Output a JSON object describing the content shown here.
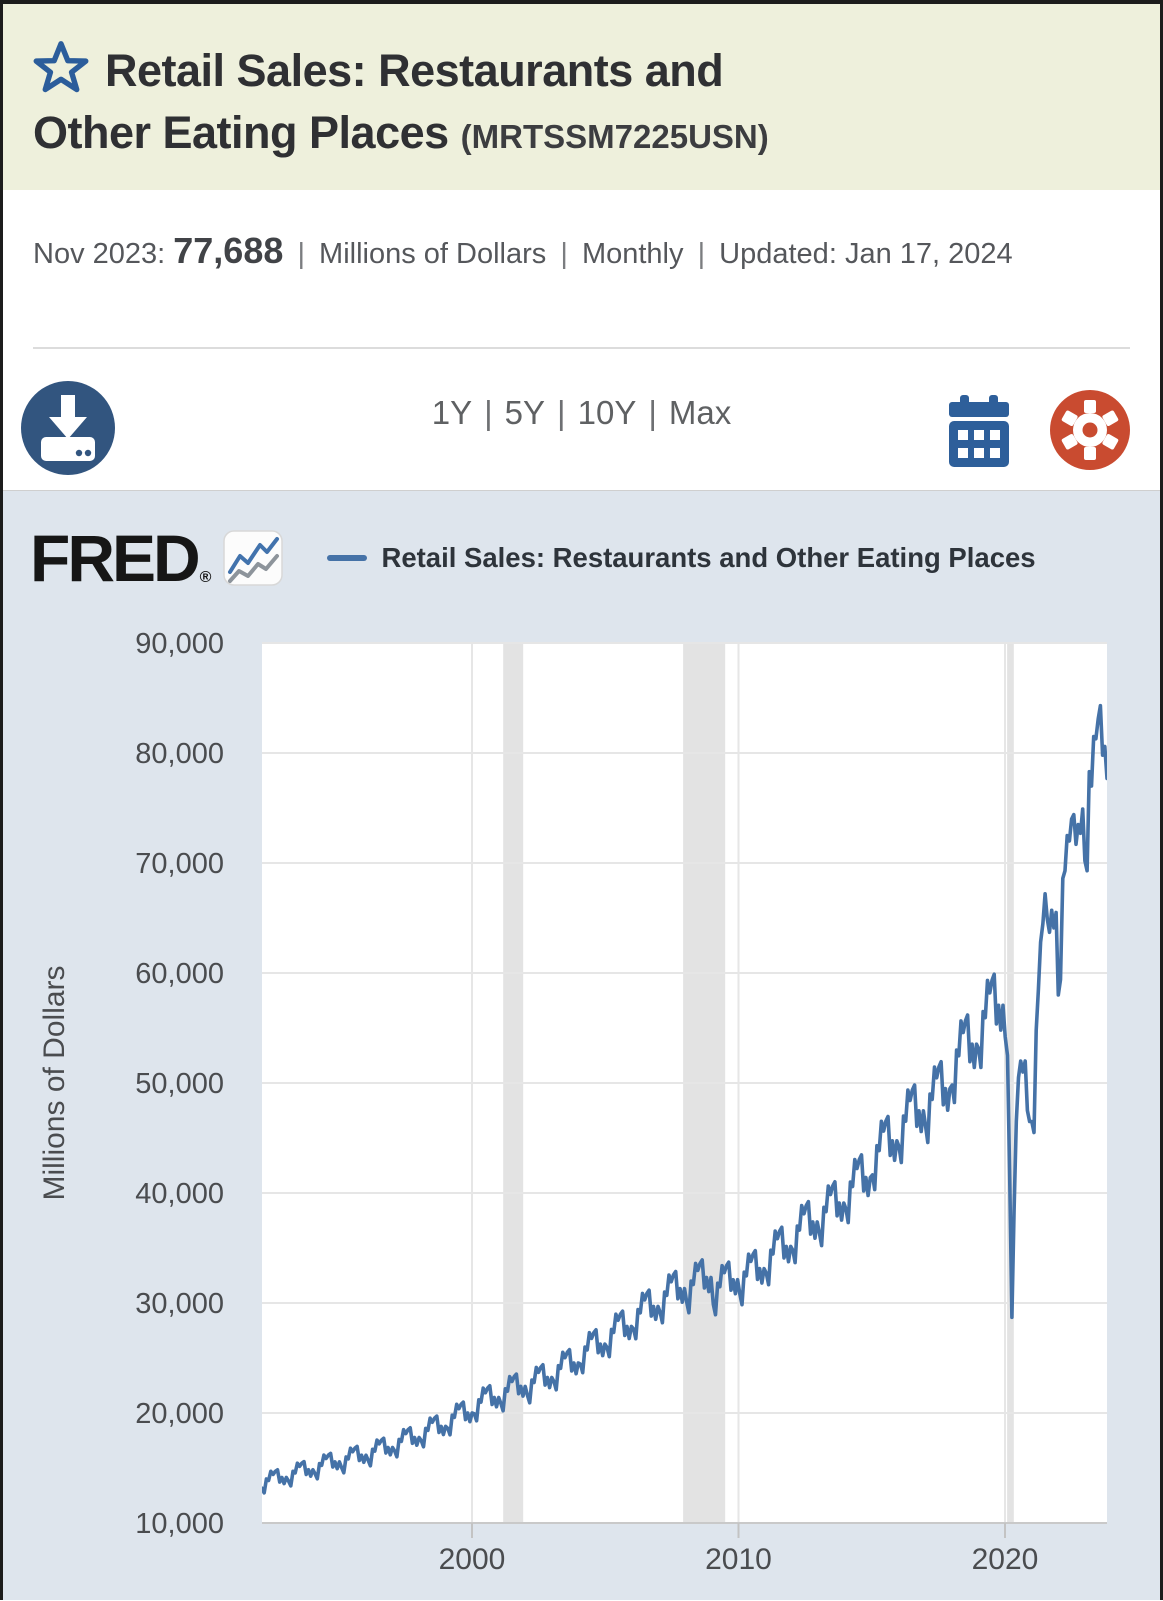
{
  "header": {
    "title_line1": "Retail Sales: Restaurants and",
    "title_line2": "Other Eating Places",
    "series_id": "(MRTSSM7225USN)"
  },
  "meta": {
    "date_label": "Nov 2023:",
    "value": "77,688",
    "separator": "|",
    "units": "Millions of Dollars",
    "frequency": "Monthly",
    "updated_label": "Updated:",
    "updated_date": "Jan 17, 2024"
  },
  "toolbar": {
    "ranges": [
      "1Y",
      "5Y",
      "10Y",
      "Max"
    ],
    "range_separator": "|",
    "download_icon_color": "#32557f",
    "calendar_icon_color": "#2e5f9a",
    "gear_icon_color": "#c94b30",
    "star_icon_color": "#2b5d9b"
  },
  "chart": {
    "logo_text": "FRED",
    "logo_reg": "®",
    "legend_label": "Retail Sales: Restaurants and Other Eating Places",
    "colors": {
      "section_bg": "#dee5ed",
      "plot_bg": "#ffffff",
      "grid": "#e6e6e6",
      "recession_band": "#e3e3e3",
      "axis_line": "#c9c9c9",
      "tick": "#c3c3c3",
      "axis_text": "#4a4c4f",
      "line": "#4572a7",
      "badge_line_blue": "#4273ad",
      "badge_line_gray": "#8d949b"
    },
    "chart_data": {
      "type": "line",
      "title": "Retail Sales: Restaurants and Other Eating Places",
      "ylabel": "Millions of Dollars",
      "ylim": [
        10000,
        90000
      ],
      "yticks": [
        10000,
        20000,
        30000,
        40000,
        50000,
        60000,
        70000,
        80000,
        90000
      ],
      "xticks": [
        2000,
        2010,
        2020
      ],
      "frequency": "monthly",
      "x_start": "1992-01",
      "x_end": "2023-11",
      "grid": true,
      "legend_position": "top",
      "recession_bands": [
        [
          2001.17,
          2001.92
        ],
        [
          2007.92,
          2009.5
        ],
        [
          2020.08,
          2020.33
        ]
      ],
      "values": [
        13160,
        12740,
        14000,
        13860,
        14700,
        14420,
        14700,
        14840,
        13720,
        14140,
        13580,
        14140,
        13818,
        13377,
        14700,
        14553,
        15435,
        15141,
        15435,
        15582,
        14406,
        14847,
        14259,
        14847,
        14476,
        14014,
        15400,
        15246,
        16170,
        15862,
        16170,
        16324,
        15092,
        15554,
        14938,
        15554,
        15040,
        14560,
        16000,
        15840,
        16800,
        16480,
        16800,
        16960,
        15680,
        16160,
        15520,
        16160,
        15698,
        15197,
        16700,
        16533,
        17535,
        17201,
        17535,
        17702,
        16366,
        16867,
        16199,
        16867,
        16544,
        16016,
        17600,
        17424,
        18480,
        18128,
        18480,
        18656,
        17248,
        17776,
        17072,
        17776,
        17484,
        16926,
        18600,
        18414,
        19530,
        19158,
        19530,
        19716,
        18228,
        18786,
        18042,
        18786,
        18612,
        18018,
        19800,
        19602,
        20790,
        20394,
        20790,
        20988,
        19404,
        19998,
        19206,
        19998,
        19928,
        19292,
        21200,
        20988,
        22260,
        21836,
        22260,
        22472,
        20776,
        21412,
        20564,
        21412,
        20868,
        20202,
        22200,
        21978,
        23310,
        22866,
        23310,
        23532,
        21756,
        22422,
        21534,
        22422,
        21620,
        20930,
        23000,
        22770,
        24150,
        23690,
        24150,
        24380,
        22540,
        23230,
        22310,
        23230,
        22842,
        22113,
        24300,
        24057,
        25515,
        25029,
        25515,
        25758,
        23814,
        24543,
        23571,
        24543,
        24440,
        23660,
        26000,
        25740,
        27300,
        26780,
        27300,
        27560,
        25480,
        26260,
        25220,
        26260,
        25944,
        25116,
        27600,
        27324,
        28980,
        28428,
        28980,
        29256,
        27048,
        27876,
        26772,
        27876,
        27636,
        26754,
        29400,
        29106,
        30870,
        30282,
        30870,
        31164,
        28812,
        29694,
        28518,
        29694,
        29140,
        28210,
        31000,
        30690,
        32550,
        31930,
        32550,
        32860,
        30380,
        31310,
        30070,
        31310,
        30080,
        29120,
        32000,
        31680,
        33600,
        32960,
        33600,
        33920,
        31360,
        32320,
        31040,
        32320,
        29892,
        28938,
        31800,
        31482,
        33390,
        32754,
        33390,
        33708,
        31164,
        32118,
        30846,
        32118,
        30832,
        29848,
        32800,
        32472,
        34440,
        33784,
        34440,
        34768,
        32144,
        33128,
        31816,
        33128,
        32712,
        31668,
        34800,
        34452,
        36540,
        35844,
        36540,
        36888,
        34104,
        35148,
        33756,
        35148,
        34780,
        33670,
        37000,
        36630,
        38850,
        38110,
        38850,
        39220,
        36260,
        37370,
        35890,
        37370,
        36378,
        35217,
        38700,
        38313,
        40635,
        39861,
        40635,
        41022,
        37926,
        39087,
        37539,
        39087,
        38540,
        37310,
        41000,
        40590,
        43050,
        42230,
        43050,
        43460,
        40180,
        41410,
        39770,
        41410,
        41642,
        40313,
        44300,
        43857,
        46515,
        45629,
        46515,
        46958,
        43414,
        44743,
        42971,
        44743,
        44180,
        42770,
        47000,
        46530,
        49350,
        48410,
        49350,
        49820,
        46060,
        47470,
        45590,
        47470,
        46060,
        44590,
        49000,
        48510,
        51450,
        50470,
        51450,
        51940,
        48020,
        49490,
        47530,
        49490,
        49820,
        48230,
        53000,
        52470,
        55650,
        54590,
        55650,
        56180,
        51940,
        53530,
        51410,
        53530,
        53110,
        51415,
        56500,
        55935,
        59325,
        58195,
        59325,
        59890,
        55370,
        57065,
        54805,
        57065,
        54200,
        52500,
        41500,
        28700,
        38500,
        46500,
        50500,
        52000,
        51000,
        52000,
        47500,
        46500,
        46500,
        45500,
        54800,
        58500,
        62800,
        64500,
        67200,
        64900,
        63700,
        65700,
        64100,
        65500,
        58000,
        59400,
        68600,
        69300,
        72500,
        72000,
        74000,
        74400,
        71700,
        73500,
        72700,
        74900,
        70200,
        69300,
        78300,
        77000,
        81500,
        81300,
        83100,
        84300,
        79800,
        80600,
        77688
      ]
    }
  }
}
